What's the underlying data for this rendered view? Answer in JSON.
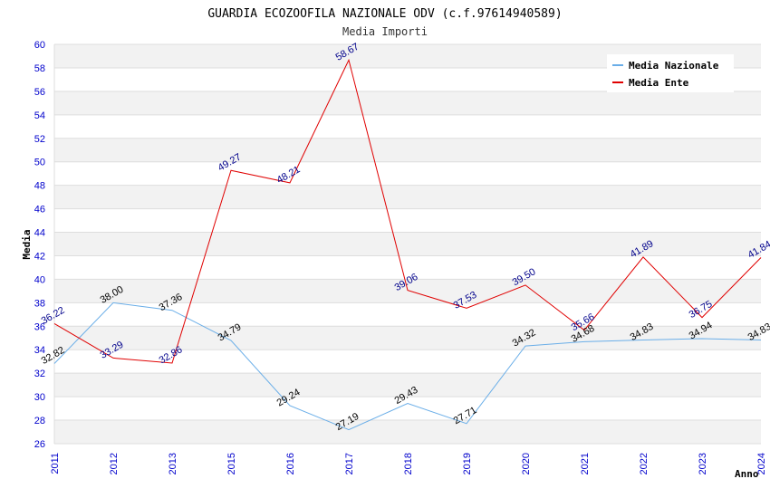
{
  "chart_data": {
    "type": "line",
    "title": "GUARDIA ECOZOOFILA NAZIONALE ODV (c.f.97614940589)",
    "subtitle": "Media Importi",
    "xlabel": "Anno",
    "ylabel": "Media",
    "categories": [
      "2011",
      "2012",
      "2013",
      "2015",
      "2016",
      "2017",
      "2018",
      "2019",
      "2020",
      "2021",
      "2022",
      "2023",
      "2024"
    ],
    "ylim": [
      26,
      60
    ],
    "yticks": [
      26,
      28,
      30,
      32,
      34,
      36,
      38,
      40,
      42,
      44,
      46,
      48,
      50,
      52,
      54,
      56,
      58,
      60
    ],
    "grid": true,
    "legend_position": "top-right",
    "series": [
      {
        "name": "Media Nazionale",
        "color": "#6aaee8",
        "label_color": "#000000",
        "values": [
          32.82,
          38.0,
          37.36,
          34.79,
          29.24,
          27.19,
          29.43,
          27.71,
          34.32,
          34.68,
          34.83,
          34.94,
          34.83
        ],
        "labels": [
          "32.82",
          "38.00",
          "37.36",
          "34.79",
          "29.24",
          "27.19",
          "29.43",
          "27.71",
          "34.32",
          "34.68",
          "34.83",
          "34.94",
          "34.83"
        ]
      },
      {
        "name": "Media Ente",
        "color": "#e00000",
        "label_color": "#00008b",
        "values": [
          36.22,
          33.29,
          32.86,
          49.27,
          48.21,
          58.67,
          39.06,
          37.53,
          39.5,
          35.66,
          41.89,
          36.75,
          41.84
        ],
        "labels": [
          "36.22",
          "33.29",
          "32.86",
          "49.27",
          "48.21",
          "58.67",
          "39.06",
          "37.53",
          "39.50",
          "35.66",
          "41.89",
          "36.75",
          "41.84"
        ]
      }
    ]
  }
}
